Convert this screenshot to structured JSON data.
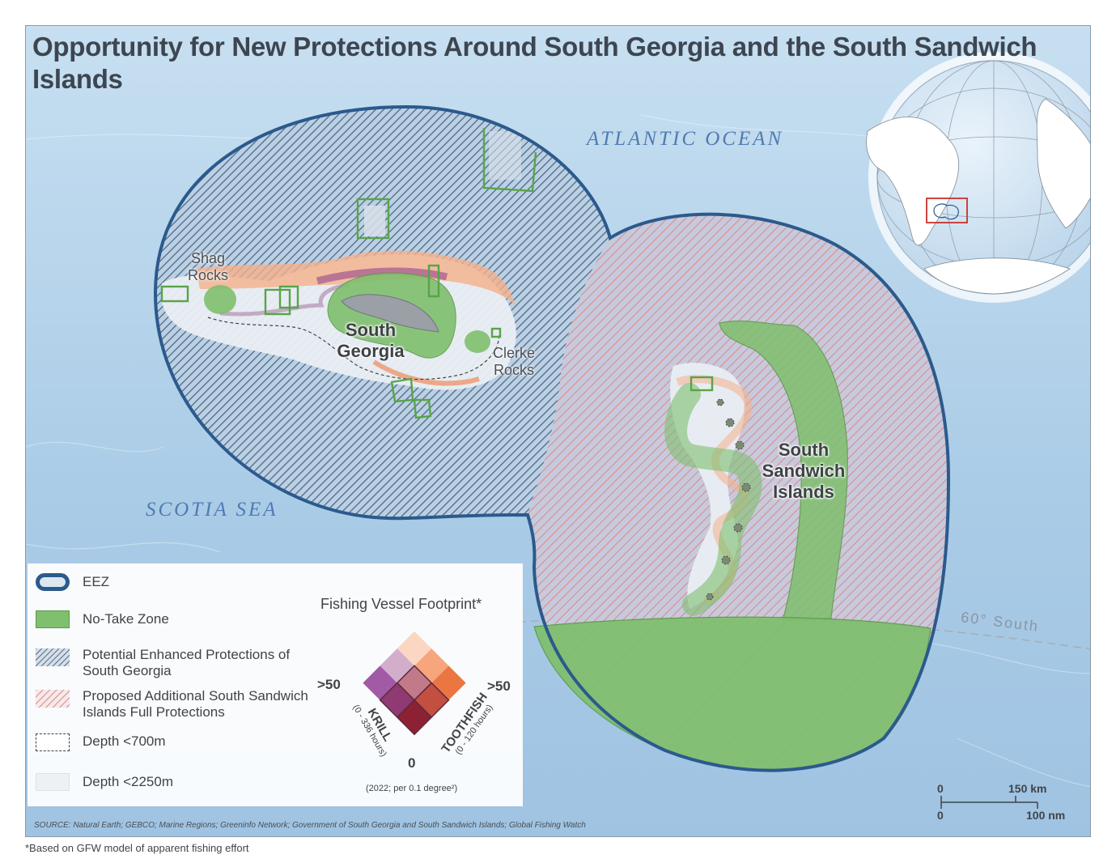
{
  "title": "Opportunity for New Protections Around South Georgia and the South Sandwich Islands",
  "labels": {
    "atlantic": "ATLANTIC OCEAN",
    "scotia": "SCOTIA SEA",
    "shag": "Shag Rocks",
    "south_georgia": "South Georgia",
    "clerke": "Clerke Rocks",
    "ssi": "South Sandwich Islands",
    "latitude": "60° South"
  },
  "legend": {
    "eez": "EEZ",
    "no_take": "No-Take Zone",
    "potential": "Potential Enhanced Protections of South Georgia",
    "proposed": "Proposed Additional South Sandwich Islands Full Protections",
    "depth700": "Depth <700m",
    "depth2250": "Depth <2250m"
  },
  "footprint": {
    "title": "Fishing Vessel Footprint*",
    "krill_max": ">50",
    "toothfish_max": ">50",
    "zero": "0",
    "krill_label": "KRILL",
    "krill_range": "(0 - 336 hours)",
    "toothfish_label": "TOOTHFISH",
    "toothfish_range": "(0 - 120 hours)",
    "note": "(2022; per 0.1 degree²)"
  },
  "scale": {
    "zero_top": "0",
    "km": "150 km",
    "zero_bottom": "0",
    "nm": "100 nm"
  },
  "source": "SOURCE: Natural Earth; GEBCO; Marine Regions; Greeninfo Network; Government of South Georgia and South Sandwich Islands; Global Fishing Watch",
  "footnote": "*Based on GFW model of apparent fishing effort",
  "colors": {
    "ocean": "#a9cbe6",
    "eez": "#2b5a8c",
    "no_take": "#7fbf6e",
    "potential_hatch": "#4d6a8a",
    "proposed_hatch": "#d98a86"
  }
}
